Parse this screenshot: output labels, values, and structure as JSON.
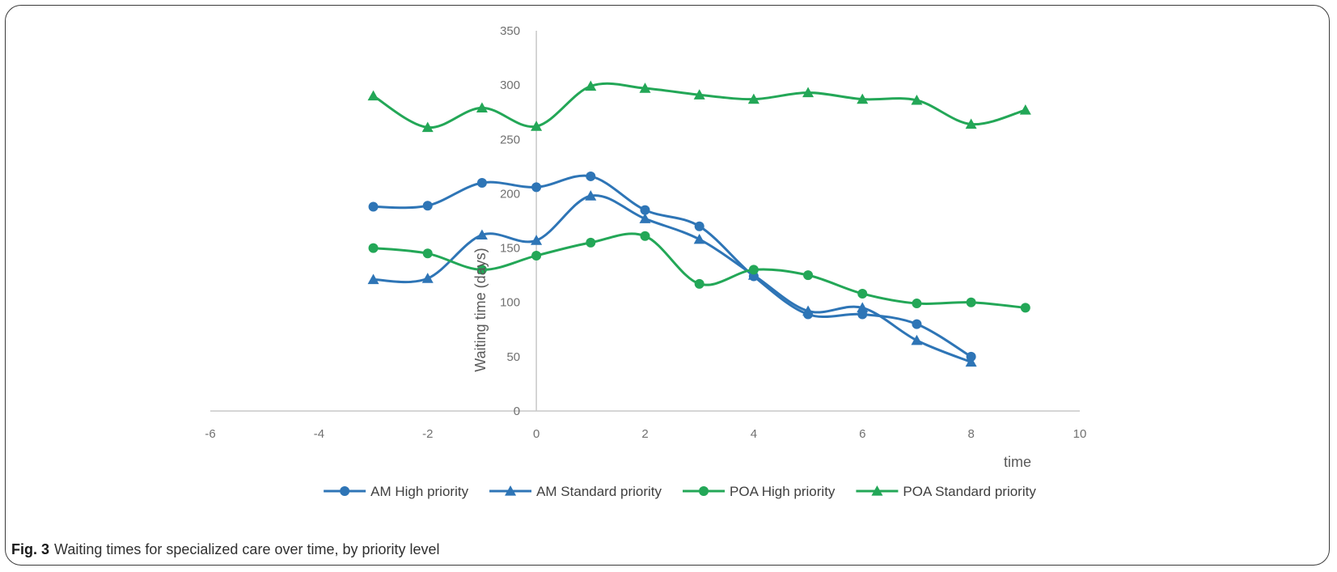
{
  "caption": {
    "label": "Fig. 3",
    "text": "Waiting times for specialized care over time, by priority level"
  },
  "chart_data": {
    "type": "line",
    "title": "",
    "xlabel": "time",
    "ylabel": "Waiting time (days)",
    "xlim": [
      -6,
      10
    ],
    "ylim": [
      0,
      350
    ],
    "xticks": [
      -6,
      -4,
      -2,
      0,
      2,
      4,
      6,
      8,
      10
    ],
    "yticks": [
      0,
      50,
      100,
      150,
      200,
      250,
      300,
      350
    ],
    "grid": false,
    "smooth": true,
    "legend_position": "bottom",
    "series": [
      {
        "name": "AM High priority",
        "color": "#2E75B6",
        "marker": "circle",
        "x": [
          -3,
          -2,
          -1,
          0,
          1,
          2,
          3,
          4,
          5,
          6,
          7,
          8
        ],
        "y": [
          188,
          189,
          210,
          206,
          216,
          185,
          170,
          124,
          89,
          89,
          80,
          50
        ]
      },
      {
        "name": "AM Standard priority",
        "color": "#2E75B6",
        "marker": "triangle",
        "x": [
          -3,
          -2,
          -1,
          0,
          1,
          2,
          3,
          4,
          5,
          6,
          7,
          8
        ],
        "y": [
          121,
          122,
          162,
          157,
          198,
          177,
          158,
          125,
          92,
          95,
          65,
          45
        ]
      },
      {
        "name": "POA High priority",
        "color": "#23A757",
        "marker": "circle",
        "x": [
          -3,
          -2,
          -1,
          0,
          1,
          2,
          3,
          4,
          5,
          6,
          7,
          8,
          9
        ],
        "y": [
          150,
          145,
          130,
          143,
          155,
          161,
          117,
          130,
          125,
          108,
          99,
          100,
          95
        ]
      },
      {
        "name": "POA Standard priority",
        "color": "#23A757",
        "marker": "triangle",
        "x": [
          -3,
          -2,
          -1,
          0,
          1,
          2,
          3,
          4,
          5,
          6,
          7,
          8,
          9
        ],
        "y": [
          290,
          261,
          279,
          262,
          299,
          297,
          291,
          287,
          293,
          287,
          286,
          264,
          277
        ]
      }
    ]
  }
}
